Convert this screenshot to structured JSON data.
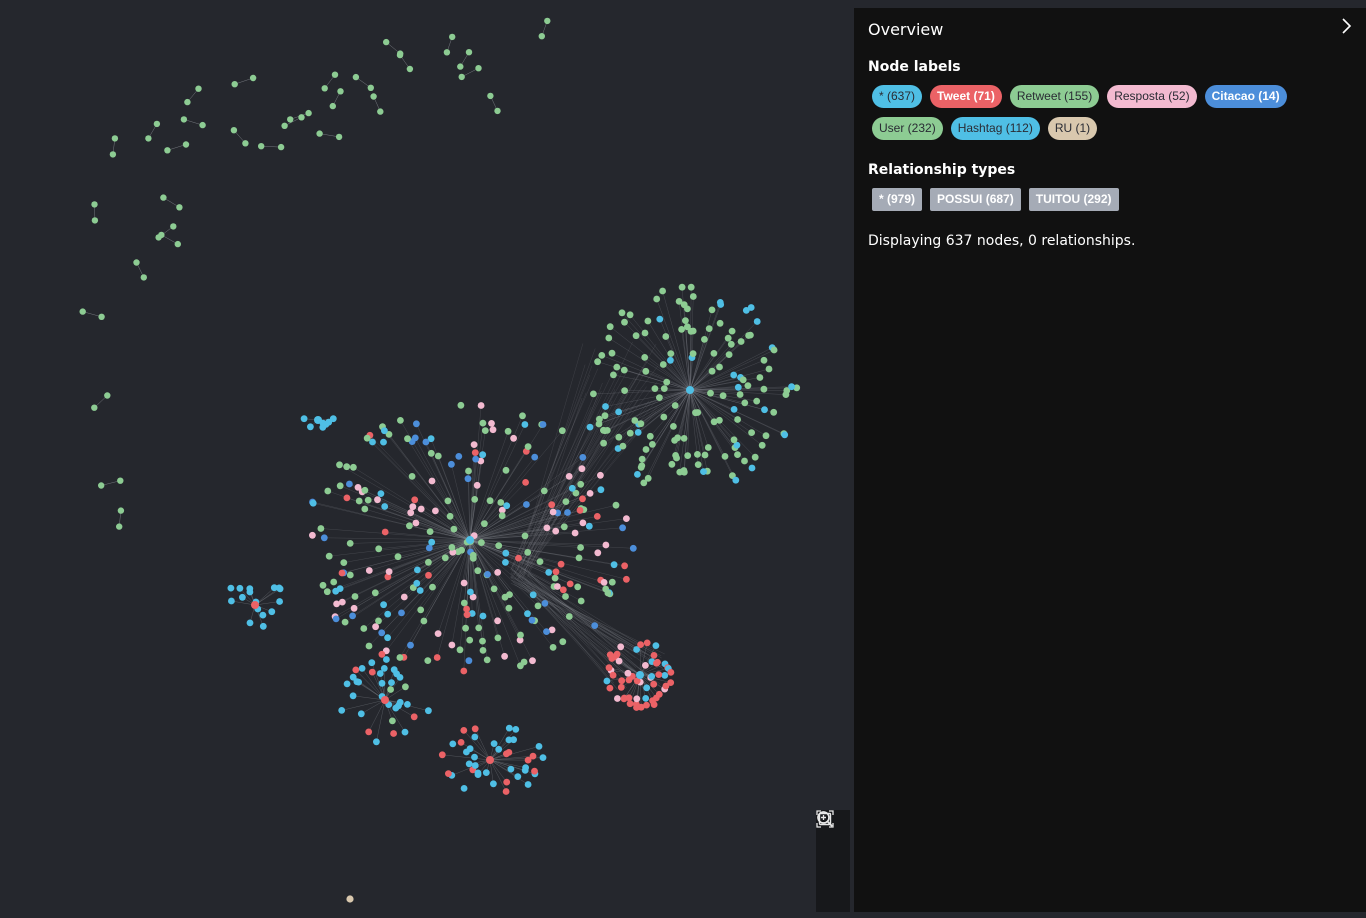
{
  "overview": {
    "title": "Overview",
    "node_labels_heading": "Node labels",
    "relationship_types_heading": "Relationship types",
    "node_labels_row1": [
      {
        "text": "* (637)",
        "bg": "#4fbfe5",
        "fg": "#2a2c34",
        "bold": false
      },
      {
        "text": "Tweet (71)",
        "bg": "#eb6266",
        "fg": "#ffffff",
        "bold": true
      },
      {
        "text": "Retweet (155)",
        "bg": "#8dcc93",
        "fg": "#2a2c34",
        "bold": false
      },
      {
        "text": "Resposta (52)",
        "bg": "#f3bad0",
        "fg": "#2a2c34",
        "bold": false
      },
      {
        "text": "Citacao (14)",
        "bg": "#4c8eda",
        "fg": "#ffffff",
        "bold": true
      }
    ],
    "node_labels_row2": [
      {
        "text": "User (232)",
        "bg": "#8dcc93",
        "fg": "#2a2c34",
        "bold": false
      },
      {
        "text": "Hashtag (112)",
        "bg": "#4fbfe5",
        "fg": "#2a2c34",
        "bold": false
      },
      {
        "text": "RU (1)",
        "bg": "#d9c8ae",
        "fg": "#2a2c34",
        "bold": false
      }
    ],
    "relationship_types": [
      {
        "text": "* (979)"
      },
      {
        "text": "POSSUI (687)"
      },
      {
        "text": "TUITOU (292)"
      }
    ],
    "status": "Displaying 637 nodes, 0 relationships."
  },
  "colors": {
    "canvas_bg": "#25272d",
    "panel_bg": "#111111",
    "green": "#8dcc93",
    "cyan": "#4fbfe5",
    "red": "#eb6266",
    "pink": "#f3bad0",
    "blue": "#4c8eda",
    "tan": "#d9c8ae",
    "edge": "#8a8d94"
  },
  "icons": {
    "collapse": "chevron-right-icon",
    "zoom_in": "zoom-in-icon",
    "zoom_out": "zoom-out-icon",
    "fit": "fit-to-screen-icon"
  }
}
